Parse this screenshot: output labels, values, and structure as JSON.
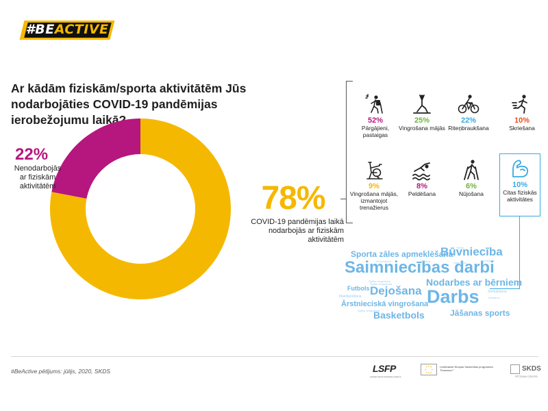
{
  "brand": {
    "hash_part": "#BE",
    "accent_part": "ACTIVE",
    "accent_color": "#f5b800"
  },
  "question": "Ar kādām fiziskām/sporta aktivitātēm Jūs nodarbojāties COVID-19 pandēmijas ierobežojumu laikā?",
  "chart_data": {
    "type": "pie",
    "donut": true,
    "values": [
      22,
      78
    ],
    "slice_colors": [
      "#b5177e",
      "#f5b800"
    ],
    "labels": [
      {
        "percent": "22%",
        "text": "Nenodarbojās ar fiziskām aktivitātēm",
        "color": "#b5177e"
      },
      {
        "percent": "78%",
        "text": "COVID-19 pandēmijas laikā nodarbojās ar fiziskām aktivitātēm",
        "color": "#f5b800"
      }
    ]
  },
  "activities": [
    {
      "percent": "52%",
      "name": "Pārgājieni, pastaigas",
      "color": "#b5177e",
      "icon": "hiker-icon"
    },
    {
      "percent": "25%",
      "name": "Vingrošana mājās",
      "color": "#6db33f",
      "icon": "yoga-icon"
    },
    {
      "percent": "22%",
      "name": "Riteņbraukšana",
      "color": "#37a9e0",
      "icon": "cyclist-icon"
    },
    {
      "percent": "10%",
      "name": "Skriešana",
      "color": "#e94e1b",
      "icon": "runner-icon"
    },
    {
      "percent": "9%",
      "name": "Vingrošana mājās, izmantojot trenažierus",
      "color": "#f5b800",
      "icon": "exercise-bike-icon"
    },
    {
      "percent": "8%",
      "name": "Peldēšana",
      "color": "#b5177e",
      "icon": "swimmer-icon"
    },
    {
      "percent": "6%",
      "name": "Nūjošana",
      "color": "#6db33f",
      "icon": "nordic-walking-icon"
    },
    {
      "percent": "10%",
      "name": "Citas fiziskās aktivitātes",
      "color": "#37a9e0",
      "icon": "muscle-arm-icon"
    }
  ],
  "word_cloud": {
    "main": [
      "Sporta zāles apmeklēšana",
      "Būvniecība",
      "Saimniecības darbi",
      "Nodarbes ar bērniem",
      "Dejošana",
      "Darbs",
      "Futbols",
      "Ārstnieciskā vingrošana",
      "Basketbols",
      "Jāšanas sports"
    ],
    "minor": [
      "Teniss",
      "Svarcelšana",
      "Airēšana",
      "Slēpošana",
      "Makšķerēšana",
      "Spēka vingrošana",
      "Skrituļošana",
      "Spēka vingrošana",
      "Volejbols",
      "Airēšana",
      "Spēka vingrošana"
    ]
  },
  "footer": {
    "source": "#BeActive pētījums: jūlijs, 2020, SKDS",
    "lsfp": "LSFP",
    "lsfp_sub": "Latvijas Sporta federāciju padome",
    "eu_text": "Līdzfinansē Eiropas Savienības programma \"Erasmus+\"",
    "skds": "SKDS",
    "skds_sub": "PĒTĪJUMU CENTRS"
  }
}
